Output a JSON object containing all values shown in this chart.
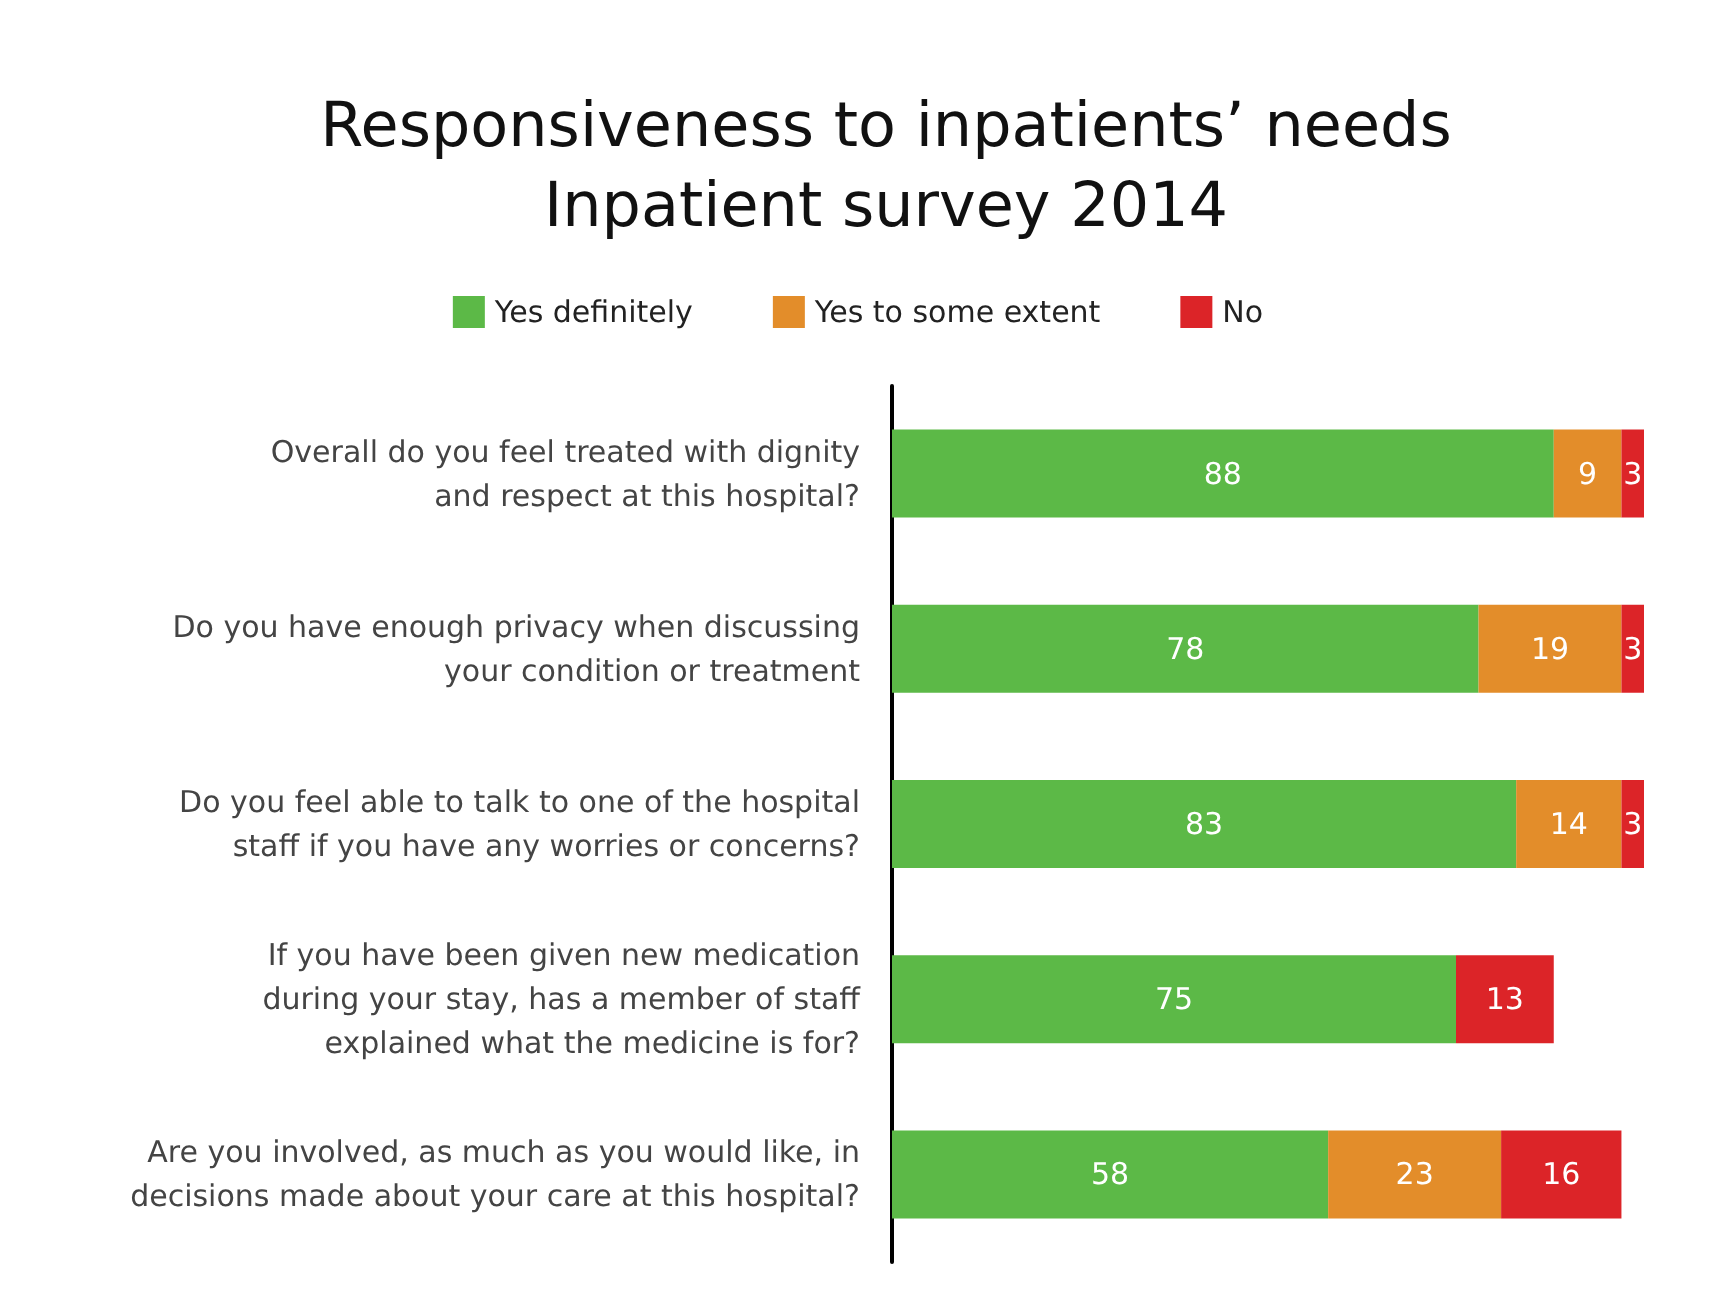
{
  "chart_data": {
    "type": "bar",
    "orientation": "horizontal",
    "stacked": true,
    "data_labels": true,
    "legend": "top",
    "tick_labels": "y",
    "title": "Responsiveness to inpatients’ needs\nInpatient survey 2014",
    "categories": [
      "Overall do you feel treated with dignity\nand respect at this hospital?",
      "Do you have enough privacy when discussing\nyour condition or treatment",
      "Do you feel able to talk to one of the hospital\nstaff if you have any worries or concerns?",
      "If you have been given new medication\nduring your stay, has a member of staff\nexplained what the medicine is for?",
      "Are you involved, as much as you would like, in\ndecisions made about your care at this hospital?"
    ],
    "series": [
      {
        "name": "Yes definitely",
        "color": "#5cb947",
        "values": [
          88,
          78,
          83,
          75,
          58
        ]
      },
      {
        "name": "Yes to some extent",
        "color": "#e38d2a",
        "values": [
          9,
          19,
          14,
          null,
          23
        ]
      },
      {
        "name": "No",
        "color": "#dc2428",
        "values": [
          3,
          3,
          3,
          13,
          16
        ]
      }
    ]
  }
}
